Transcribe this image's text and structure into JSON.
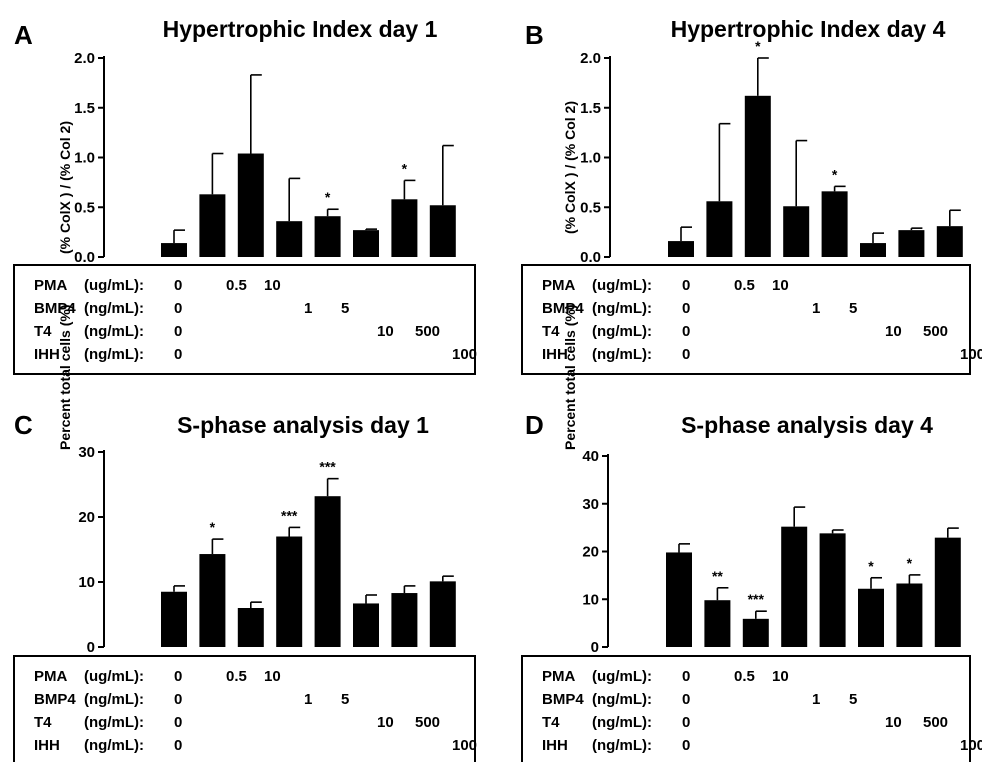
{
  "condition_rows": [
    {
      "agent": "PMA",
      "unit": "(ug/mL):",
      "levels": [
        "0",
        "0.5",
        "10",
        "",
        "",
        "",
        "",
        ""
      ]
    },
    {
      "agent": "BMP4",
      "unit": "(ng/mL):",
      "levels": [
        "0",
        "",
        "",
        "1",
        "5",
        "",
        "",
        ""
      ]
    },
    {
      "agent": "T4",
      "unit": "(ng/mL):",
      "levels": [
        "0",
        "",
        "",
        "",
        "",
        "10",
        "500",
        ""
      ]
    },
    {
      "agent": "IHH",
      "unit": "(ng/mL):",
      "levels": [
        "0",
        "",
        "",
        "",
        "",
        "",
        "",
        "100"
      ]
    }
  ],
  "chart_data": [
    {
      "type": "bar",
      "panel_label": "A",
      "title": "Hypertrophic Index day 1",
      "xlabel": "",
      "ylabel": "(% ColX ) / (% Col 2)",
      "ylim": [
        0,
        2.0
      ],
      "yticks": [
        "0.0",
        "0.5",
        "1.0",
        "1.5",
        "2.0"
      ],
      "values": [
        0.14,
        0.63,
        1.04,
        0.36,
        0.41,
        0.27,
        0.58,
        0.52
      ],
      "errors": [
        0.13,
        0.41,
        0.79,
        0.43,
        0.07,
        0.01,
        0.19,
        0.6
      ],
      "significance": [
        "",
        "",
        "",
        "",
        "*",
        "",
        "*",
        ""
      ]
    },
    {
      "type": "bar",
      "panel_label": "B",
      "title": "Hypertrophic Index day 4",
      "xlabel": "",
      "ylabel": "(% ColX ) / (% Col 2)",
      "ylim": [
        0,
        2.0
      ],
      "yticks": [
        "0.0",
        "0.5",
        "1.0",
        "1.5",
        "2.0"
      ],
      "values": [
        0.16,
        0.56,
        1.62,
        0.51,
        0.66,
        0.14,
        0.27,
        0.31
      ],
      "errors": [
        0.14,
        0.78,
        0.38,
        0.66,
        0.05,
        0.1,
        0.02,
        0.16
      ],
      "significance": [
        "",
        "",
        "*",
        "",
        "*",
        "",
        "",
        ""
      ]
    },
    {
      "type": "bar",
      "panel_label": "C",
      "title": "S-phase analysis day 1",
      "xlabel": "",
      "ylabel": "Percent total cells (%)",
      "ylim": [
        0,
        30
      ],
      "yticks": [
        "0",
        "10",
        "20",
        "30"
      ],
      "values": [
        8.5,
        14.3,
        6.0,
        17.0,
        23.2,
        6.7,
        8.3,
        10.1
      ],
      "errors": [
        0.9,
        2.3,
        0.9,
        1.4,
        2.7,
        1.3,
        1.1,
        0.8
      ],
      "significance": [
        "",
        "*",
        "",
        "***",
        "***",
        "",
        "",
        ""
      ]
    },
    {
      "type": "bar",
      "panel_label": "D",
      "title": "S-phase analysis day 4",
      "xlabel": "",
      "ylabel": "Percent total cells (%)",
      "ylim": [
        0,
        40
      ],
      "yticks": [
        "0",
        "10",
        "20",
        "30",
        "40"
      ],
      "values": [
        19.8,
        9.8,
        5.9,
        25.2,
        23.8,
        12.2,
        13.3,
        22.9
      ],
      "errors": [
        1.8,
        2.6,
        1.6,
        4.1,
        0.7,
        2.3,
        1.8,
        2.0
      ],
      "significance": [
        "",
        "**",
        "***",
        "",
        "",
        "*",
        "*",
        ""
      ]
    }
  ]
}
